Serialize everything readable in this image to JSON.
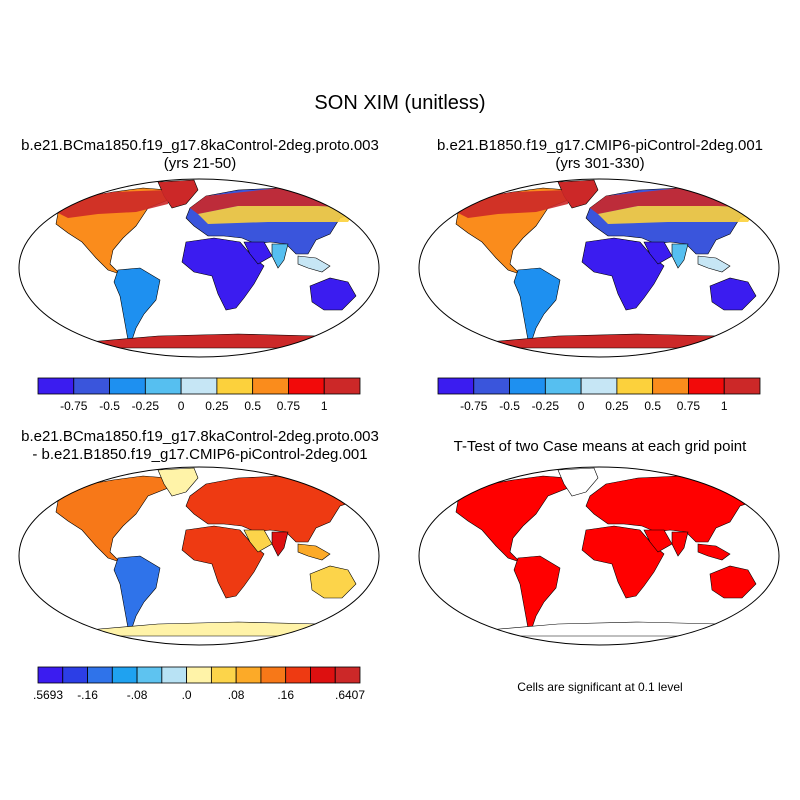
{
  "figure": {
    "title": "SON XIM (unitless)",
    "panel1": {
      "title_line1": "b.e21.BCma1850.f19_g17.8kaControl-2deg.proto.003",
      "title_line2": "(yrs 21-50)"
    },
    "panel2": {
      "title_line1": "b.e21.B1850.f19_g17.CMIP6-piControl-2deg.001",
      "title_line2": "(yrs 301-330)"
    },
    "panel3": {
      "title_line1": "b.e21.BCma1850.f19_g17.8kaControl-2deg.proto.003",
      "title_line2": "- b.e21.B1850.f19_g17.CMIP6-piControl-2deg.001"
    },
    "panel4": {
      "title": "T-Test of two Case means at each grid point",
      "note": "Cells are significant at 0.1 level"
    }
  },
  "colorbars": {
    "abs": {
      "colors": [
        "#3b1cf0",
        "#3a55dc",
        "#1e90f0",
        "#56bff0",
        "#c6e6f5",
        "#fcd13c",
        "#fa8c1c",
        "#f20a0a",
        "#cc2828"
      ],
      "labels": [
        "-0.75",
        "-0.5",
        "-0.25",
        "0",
        "0.25",
        "0.5",
        "0.75",
        "1"
      ]
    },
    "diff": {
      "colors": [
        "#3b1cf0",
        "#2c3ee6",
        "#2f73ea",
        "#1fa2f0",
        "#5ec3f0",
        "#b8e2f4",
        "#fff3a8",
        "#fcd44a",
        "#fcaa28",
        "#f77818",
        "#ee3a12",
        "#dd1010",
        "#cc2828"
      ],
      "labels": [
        ".5693",
        "-.16",
        "-.08",
        ".0",
        ".08",
        ".16",
        ".6407"
      ],
      "label_slots": [
        0,
        2,
        4,
        6,
        8,
        10,
        13
      ]
    }
  },
  "maps": {
    "continent_icons": [
      "north-america",
      "south-america",
      "greenland",
      "eurasia",
      "africa",
      "arabia",
      "india",
      "southeast-asia",
      "australia",
      "antarctica"
    ],
    "ttest_color": "#ff0000",
    "map_fill_blue": "#3b2ff0",
    "map_fill_red": "#cc2828"
  }
}
